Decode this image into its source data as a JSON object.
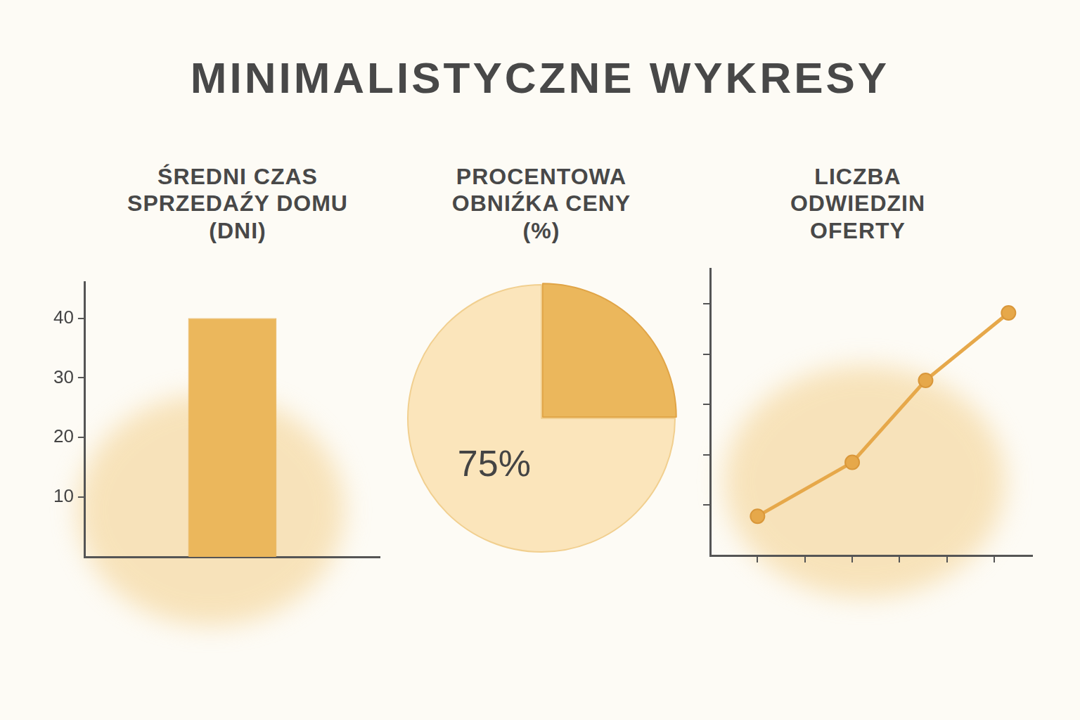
{
  "title": "MINIMALISTYCZNE WYKRESY",
  "chart_data": [
    {
      "type": "bar",
      "title": "ŚREDNI CZAS SPRZEDAŹY DOMU (DNI)",
      "categories": [
        null
      ],
      "values": [
        40
      ],
      "color": "#ebb75c",
      "ylim": [
        0,
        46
      ],
      "yticks": [
        10,
        20,
        30,
        40
      ],
      "grid": false,
      "tick_labels": "y"
    },
    {
      "type": "pie",
      "title": "PROCENTOWA OBNIŹKA CENY (%)",
      "categories": [
        null,
        null
      ],
      "values": [
        25,
        75
      ],
      "value_labels": [
        null,
        "75%"
      ],
      "colors": [
        "#ebb75c",
        "#fbe5bb"
      ]
    },
    {
      "type": "line",
      "title": "LICZBA ODWIEDZIN OFERTY",
      "x": [
        1,
        3,
        4.55,
        6.3
      ],
      "values": [
        0.78,
        1.85,
        3.48,
        4.82
      ],
      "color": "#e6a84a",
      "marker": "circle",
      "xlim": [
        0,
        6.8
      ],
      "ylim": [
        0,
        5.7
      ],
      "xticks": [
        1,
        2,
        3,
        4,
        5,
        6
      ],
      "yticks": [
        1,
        2,
        3,
        4,
        5
      ],
      "grid": false,
      "tick_labels": false
    }
  ]
}
